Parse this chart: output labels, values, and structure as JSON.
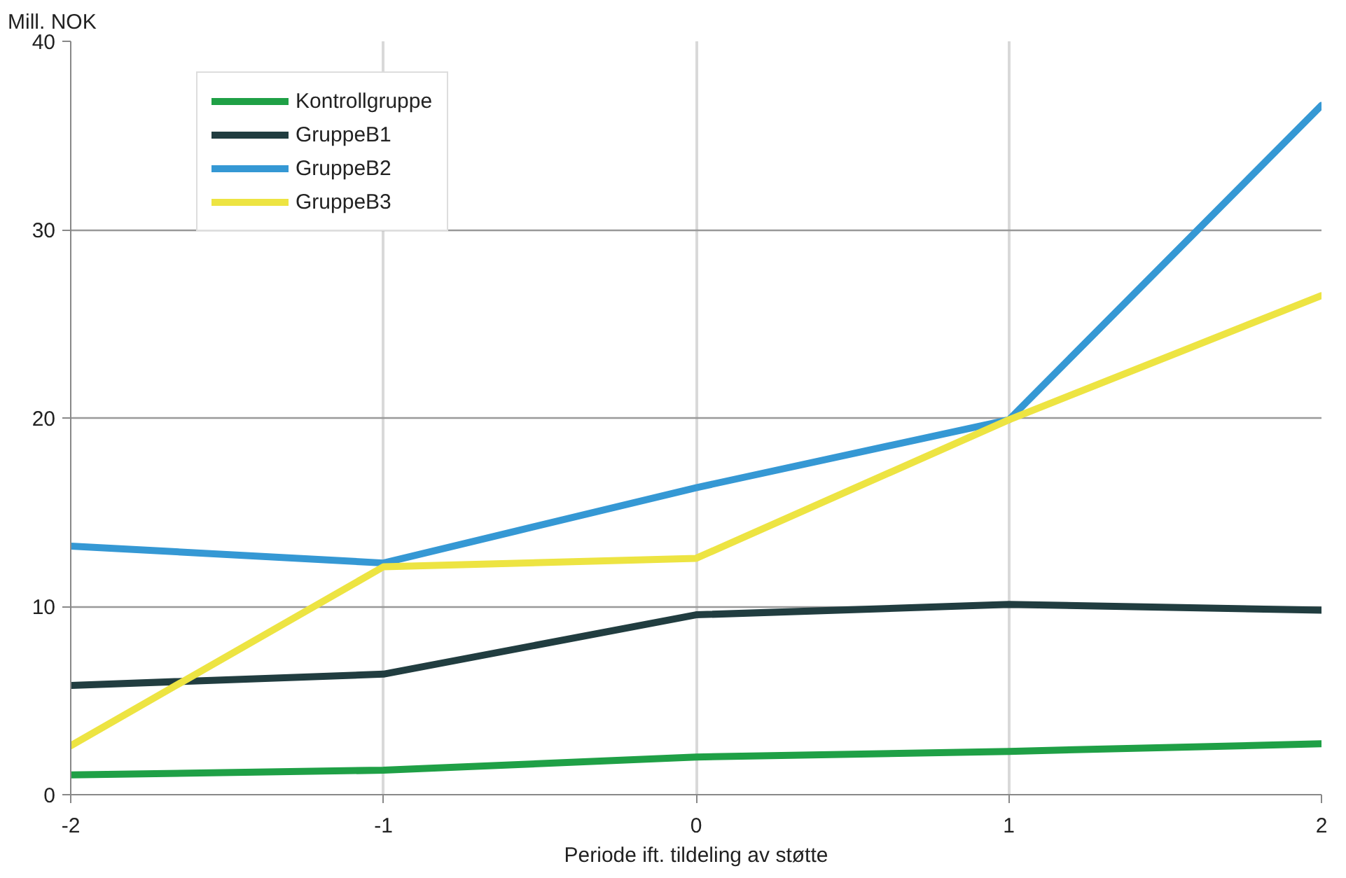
{
  "chart_data": {
    "type": "line",
    "xlabel": "Periode ift. tildeling av støtte",
    "ylabel": "Mill. NOK",
    "x": [
      -2,
      -1,
      0,
      1,
      2
    ],
    "xlim": [
      -2,
      2
    ],
    "xticks": [
      -2,
      -1,
      0,
      1,
      2
    ],
    "ylim": [
      0,
      40
    ],
    "yticks": [
      0,
      10,
      20,
      30,
      40
    ],
    "grid": true,
    "legend": "top left",
    "marker": "none",
    "line_style": "solid",
    "series": [
      {
        "name": "Kontrollgruppe",
        "color": "#1fa046",
        "values": [
          1.05,
          1.3,
          2.0,
          2.3,
          2.7
        ]
      },
      {
        "name": "GruppeB1",
        "color": "#213d40",
        "values": [
          5.8,
          6.4,
          9.55,
          10.1,
          9.8
        ]
      },
      {
        "name": "GruppeB2",
        "color": "#3598d4",
        "values": [
          13.2,
          12.3,
          16.3,
          19.9,
          36.6
        ]
      },
      {
        "name": "GruppeB3",
        "color": "#ede442",
        "values": [
          2.6,
          12.1,
          12.55,
          19.9,
          26.5
        ]
      }
    ]
  }
}
